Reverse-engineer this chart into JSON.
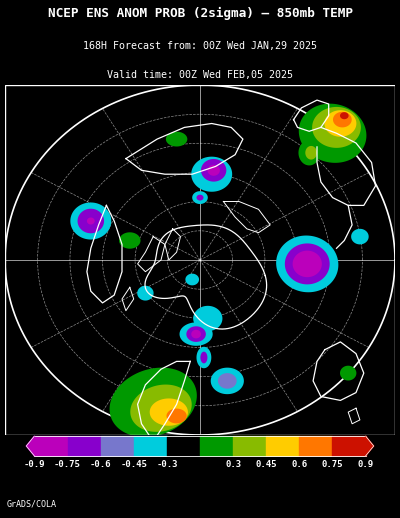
{
  "title_line1": "NCEP ENS ANOM PROB (2sigma) – 850mb TEMP",
  "title_line2": "168H Forecast from: 00Z Wed JAN,29 2025",
  "title_line3": "Valid time: 00Z Wed FEB,05 2025",
  "colorbar_labels": [
    "-0.9",
    "-0.75",
    "-0.6",
    "-0.45",
    "-0.3",
    "0.3",
    "0.45",
    "0.6",
    "0.75",
    "0.9"
  ],
  "colorbar_colors": [
    "#bb00bb",
    "#8800cc",
    "#7777cc",
    "#00ccdd",
    "#000000",
    "#009900",
    "#88bb00",
    "#ffcc00",
    "#ff7700",
    "#cc1100"
  ],
  "background_color": "#000000",
  "text_color": "#ffffff",
  "attribution": "GrADS/COLA",
  "fig_width": 4.0,
  "fig_height": 5.18,
  "col_neg09": "#bb00bb",
  "col_neg075": "#8800cc",
  "col_neg06": "#7777cc",
  "col_neg045": "#00ccdd",
  "col_pos03": "#009900",
  "col_pos045": "#88bb00",
  "col_pos06": "#ffcc00",
  "col_pos075": "#ff7700",
  "col_pos09": "#cc1100"
}
